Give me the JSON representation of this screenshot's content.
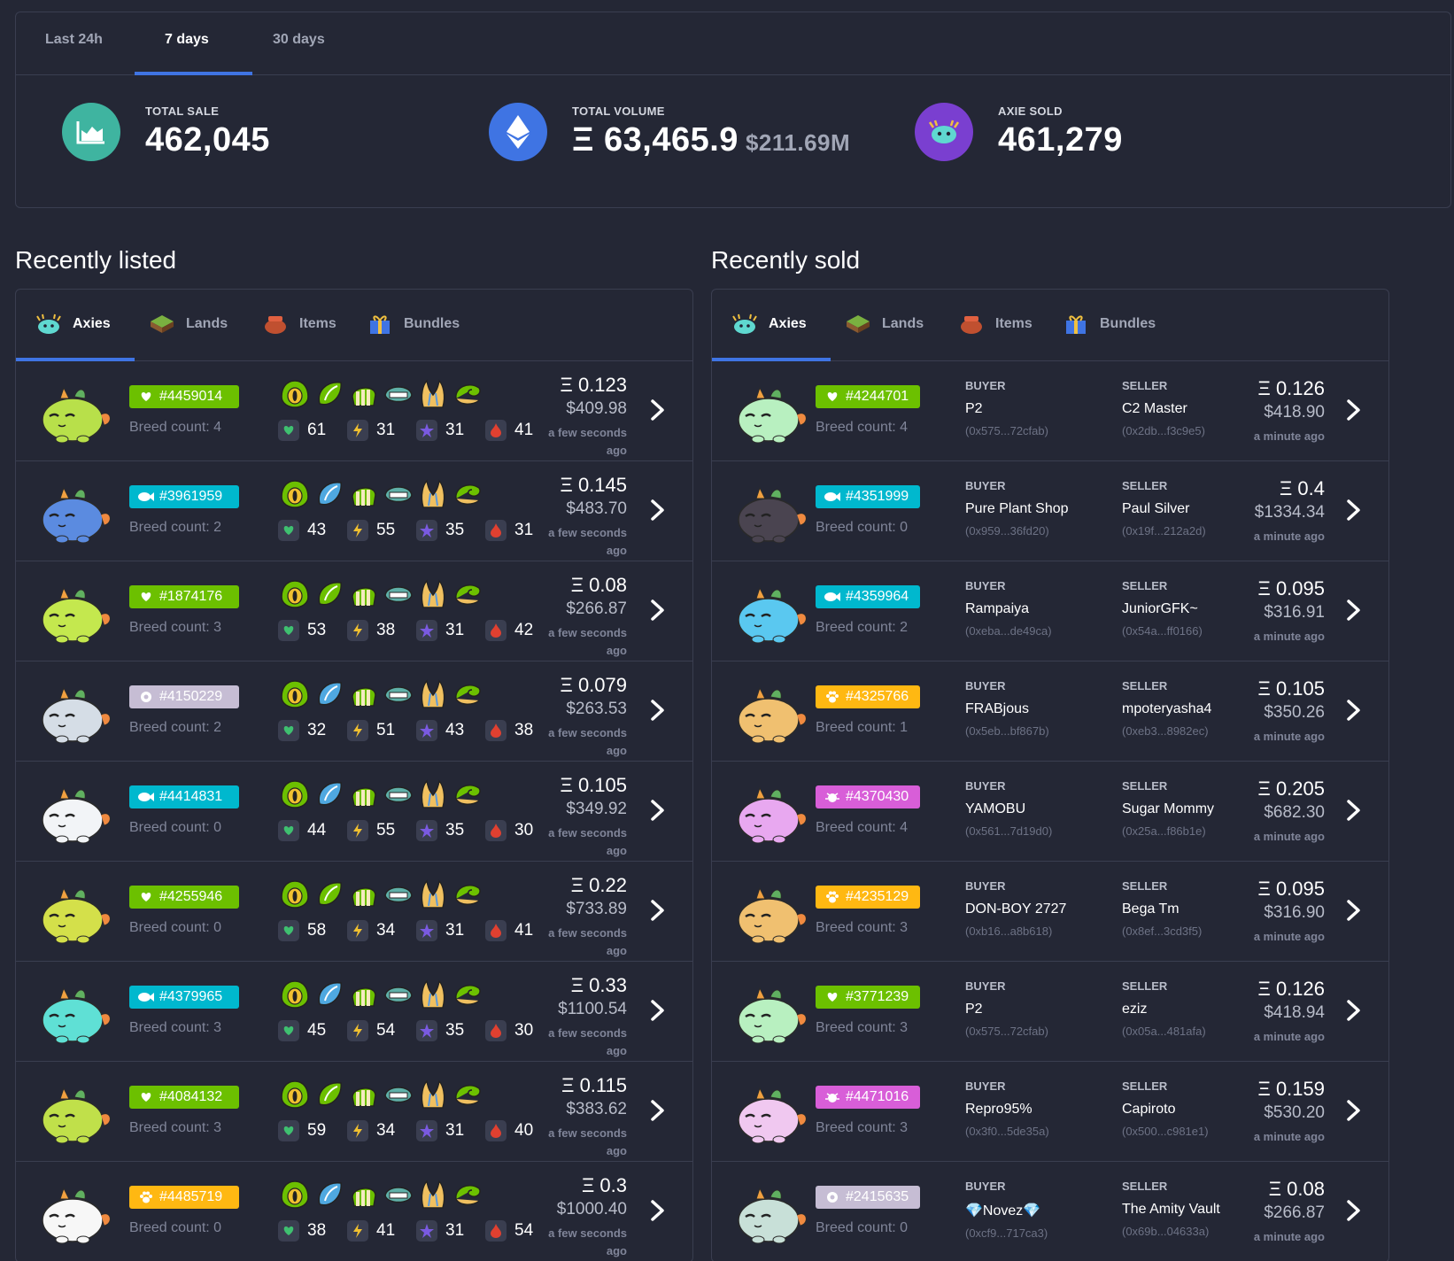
{
  "time_tabs": [
    "Last 24h",
    "7 days",
    "30 days"
  ],
  "stats": {
    "total_sale": {
      "label": "TOTAL SALE",
      "value": "462,045"
    },
    "total_volume": {
      "label": "TOTAL VOLUME",
      "value": "Ξ 63,465.9",
      "sub": "$211.69M"
    },
    "axie_sold": {
      "label": "AXIE SOLD",
      "value": "461,279"
    }
  },
  "recently_listed": {
    "title": "Recently listed",
    "tabs": [
      "Axies",
      "Lands",
      "Items",
      "Bundles"
    ],
    "rows": [
      {
        "id": "#4459014",
        "class": "plant",
        "breed": "Breed count: 4",
        "hp": "61",
        "speed": "31",
        "skill": "31",
        "morale": "41",
        "eth": "Ξ 0.123",
        "usd": "$409.98",
        "ago": "a few seconds ago",
        "color": "#b8e04a"
      },
      {
        "id": "#3961959",
        "class": "aquatic",
        "breed": "Breed count: 2",
        "hp": "43",
        "speed": "55",
        "skill": "35",
        "morale": "31",
        "eth": "Ξ 0.145",
        "usd": "$483.70",
        "ago": "a few seconds ago",
        "color": "#5b8be0"
      },
      {
        "id": "#1874176",
        "class": "plant",
        "breed": "Breed count: 3",
        "hp": "53",
        "speed": "38",
        "skill": "31",
        "morale": "42",
        "eth": "Ξ 0.08",
        "usd": "$266.87",
        "ago": "a few seconds ago",
        "color": "#c4e84e"
      },
      {
        "id": "#4150229",
        "class": "mech",
        "breed": "Breed count: 2",
        "hp": "32",
        "speed": "51",
        "skill": "43",
        "morale": "38",
        "eth": "Ξ 0.079",
        "usd": "$263.53",
        "ago": "a few seconds ago",
        "color": "#d5dde6"
      },
      {
        "id": "#4414831",
        "class": "aquatic",
        "breed": "Breed count: 0",
        "hp": "44",
        "speed": "55",
        "skill": "35",
        "morale": "30",
        "eth": "Ξ 0.105",
        "usd": "$349.92",
        "ago": "a few seconds ago",
        "color": "#f2f4f7"
      },
      {
        "id": "#4255946",
        "class": "plant",
        "breed": "Breed count: 0",
        "hp": "58",
        "speed": "34",
        "skill": "31",
        "morale": "41",
        "eth": "Ξ 0.22",
        "usd": "$733.89",
        "ago": "a few seconds ago",
        "color": "#d4e04a"
      },
      {
        "id": "#4379965",
        "class": "aquatic",
        "breed": "Breed count: 3",
        "hp": "45",
        "speed": "54",
        "skill": "35",
        "morale": "30",
        "eth": "Ξ 0.33",
        "usd": "$1100.54",
        "ago": "a few seconds ago",
        "color": "#5fe0d5"
      },
      {
        "id": "#4084132",
        "class": "plant",
        "breed": "Breed count: 3",
        "hp": "59",
        "speed": "34",
        "skill": "31",
        "morale": "40",
        "eth": "Ξ 0.115",
        "usd": "$383.62",
        "ago": "a few seconds ago",
        "color": "#c0e04a"
      },
      {
        "id": "#4485719",
        "class": "beast",
        "breed": "Breed count: 0",
        "hp": "38",
        "speed": "41",
        "skill": "31",
        "morale": "54",
        "eth": "Ξ 0.3",
        "usd": "$1000.40",
        "ago": "a few seconds ago",
        "color": "#f7f7f7"
      }
    ]
  },
  "recently_sold": {
    "title": "Recently sold",
    "tabs": [
      "Axies",
      "Lands",
      "Items",
      "Bundles"
    ],
    "buyer_label": "BUYER",
    "seller_label": "SELLER",
    "rows": [
      {
        "id": "#4244701",
        "class": "plant",
        "breed": "Breed count: 4",
        "buyer": "P2",
        "buyer_addr": "(0x575...72cfab)",
        "seller": "C2 Master",
        "seller_addr": "(0x2db...f3c9e5)",
        "eth": "Ξ 0.126",
        "usd": "$418.90",
        "ago": "a minute ago",
        "color": "#b8f0c0"
      },
      {
        "id": "#4351999",
        "class": "aquatic",
        "breed": "Breed count: 0",
        "buyer": "Pure Plant Shop",
        "buyer_addr": "(0x959...36fd20)",
        "seller": "Paul Silver",
        "seller_addr": "(0x19f...212a2d)",
        "eth": "Ξ 0.4",
        "usd": "$1334.34",
        "ago": "a minute ago",
        "color": "#4a4450"
      },
      {
        "id": "#4359964",
        "class": "aquatic",
        "breed": "Breed count: 2",
        "buyer": "Rampaiya",
        "buyer_addr": "(0xeba...de49ca)",
        "seller": "JuniorGFK~",
        "seller_addr": "(0x54a...ff0166)",
        "eth": "Ξ 0.095",
        "usd": "$316.91",
        "ago": "a minute ago",
        "color": "#5ac8f0"
      },
      {
        "id": "#4325766",
        "class": "beast",
        "breed": "Breed count: 1",
        "buyer": "FRABjous",
        "buyer_addr": "(0x5eb...bf867b)",
        "seller": "mpoteryasha4",
        "seller_addr": "(0xeb3...8982ec)",
        "eth": "Ξ 0.105",
        "usd": "$350.26",
        "ago": "a minute ago",
        "color": "#f0c070"
      },
      {
        "id": "#4370430",
        "class": "bug",
        "breed": "Breed count: 4",
        "buyer": "YAMOBU",
        "buyer_addr": "(0x561...7d19d0)",
        "seller": "Sugar Mommy",
        "seller_addr": "(0x25a...f86b1e)",
        "eth": "Ξ 0.205",
        "usd": "$682.30",
        "ago": "a minute ago",
        "color": "#e8a8f0"
      },
      {
        "id": "#4235129",
        "class": "beast",
        "breed": "Breed count: 3",
        "buyer": "DON-BOY 2727",
        "buyer_addr": "(0xb16...a8b618)",
        "seller": "Bega Tm",
        "seller_addr": "(0x8ef...3cd3f5)",
        "eth": "Ξ 0.095",
        "usd": "$316.90",
        "ago": "a minute ago",
        "color": "#f0c070"
      },
      {
        "id": "#3771239",
        "class": "plant",
        "breed": "Breed count: 3",
        "buyer": "P2",
        "buyer_addr": "(0x575...72cfab)",
        "seller": "eziz",
        "seller_addr": "(0x05a...481afa)",
        "eth": "Ξ 0.126",
        "usd": "$418.94",
        "ago": "a minute ago",
        "color": "#b8f0c0"
      },
      {
        "id": "#4471016",
        "class": "bug",
        "breed": "Breed count: 3",
        "buyer": "Repro95%",
        "buyer_addr": "(0x3f0...5de35a)",
        "seller": "Capiroto",
        "seller_addr": "(0x500...c981e1)",
        "eth": "Ξ 0.159",
        "usd": "$530.20",
        "ago": "a minute ago",
        "color": "#f0c8f0"
      },
      {
        "id": "#2415635",
        "class": "mech",
        "breed": "Breed count: 0",
        "buyer": "💎Novez💎",
        "buyer_addr": "(0xcf9...717ca3)",
        "seller": "The Amity Vault",
        "seller_addr": "(0x69b...04633a)",
        "eth": "Ξ 0.08",
        "usd": "$266.87",
        "ago": "a minute ago",
        "color": "#c8e0d8"
      }
    ]
  },
  "colors": {
    "plant": "#6cc000",
    "aquatic": "#00b8ce",
    "beast": "#ffb812",
    "mech": "#c6bdd4",
    "bug": "#d85ed8",
    "accent": "#3f74e3"
  }
}
